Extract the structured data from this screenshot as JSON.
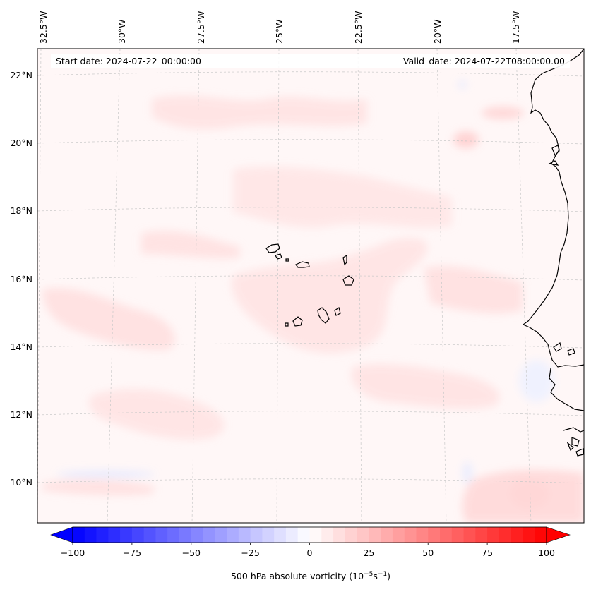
{
  "map": {
    "start_date": "Start date: 2024-07-22_00:00:00",
    "valid_date": "Valid_date: 2024-07-22T08:00:00.00",
    "lon_labels": [
      "32.5°W",
      "30°W",
      "27.5°W",
      "25°W",
      "22.5°W",
      "20°W",
      "17.5°W"
    ],
    "lat_labels": [
      "22°N",
      "20°N",
      "18°N",
      "16°N",
      "14°N",
      "12°N",
      "10°N"
    ],
    "field": "500 hPa absolute vorticity",
    "colors": {
      "negative": "#0000ff",
      "zero": "#ffffff",
      "positive": "#ff0000",
      "coast": "#000000",
      "grid": "#bdbdbd"
    }
  },
  "colorbar": {
    "ticks": [
      "−100",
      "−75",
      "−50",
      "−25",
      "0",
      "25",
      "50",
      "75",
      "100"
    ],
    "min": -100,
    "max": 100,
    "step": 5,
    "label_main": "500 hPa absolute vorticity (10",
    "label_exp1": "−5",
    "label_mid": "s",
    "label_exp2": "−1",
    "label_end": ")"
  }
}
